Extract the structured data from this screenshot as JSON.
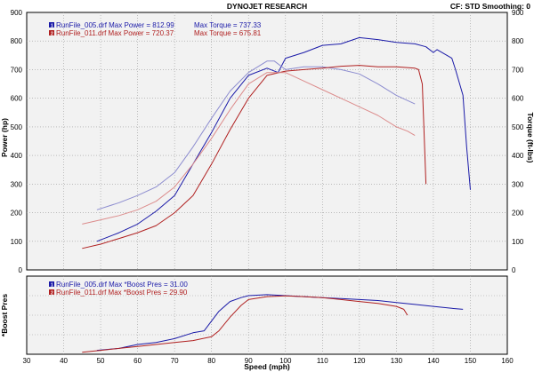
{
  "header": {
    "title": "DYNOJET RESEARCH",
    "right_info": "CF: STD   Smoothing: 0"
  },
  "colors": {
    "run1": "#1a1aa8",
    "run1_light": "#8c8ccf",
    "run2": "#b02020",
    "run2_light": "#dc8c8c",
    "plot_bg": "#f2f2f2",
    "grid": "#9a9a9a"
  },
  "chart_data": [
    {
      "type": "line",
      "panel": "power-torque",
      "ylabel": "Power (hp)",
      "y2label": "Torque (ft-lbs)",
      "xlim": [
        30,
        160
      ],
      "ylim": [
        0,
        900
      ],
      "y_ticks": [
        "0",
        "100",
        "200",
        "300",
        "400",
        "500",
        "600",
        "700",
        "800",
        "900"
      ],
      "legend": [
        {
          "marker": "1",
          "text": "RunFile_005.drf Max Power = 812.99",
          "torque_text": "Max Torque = 737.33"
        },
        {
          "marker": "2",
          "text": "RunFile_011.drf Max Power = 720.37",
          "torque_text": "Max Torque = 675.81"
        }
      ],
      "legend_position": "top-left",
      "grid": true,
      "series": [
        {
          "name": "RunFile_005.drf",
          "kind": "power",
          "color_key": "run1",
          "x": [
            49,
            55,
            60,
            65,
            70,
            75,
            80,
            85,
            90,
            95,
            98,
            100,
            105,
            110,
            115,
            120,
            125,
            130,
            135,
            138,
            140,
            141,
            145,
            146,
            148,
            149,
            150
          ],
          "y": [
            100,
            130,
            160,
            205,
            260,
            370,
            480,
            600,
            680,
            705,
            690,
            740,
            760,
            785,
            790,
            812,
            805,
            795,
            790,
            780,
            760,
            770,
            740,
            700,
            610,
            430,
            280
          ]
        },
        {
          "name": "RunFile_005.drf",
          "kind": "torque",
          "color_key": "run1_light",
          "x": [
            49,
            55,
            60,
            65,
            70,
            75,
            80,
            85,
            90,
            95,
            97,
            100,
            105,
            110,
            115,
            120,
            125,
            130,
            135
          ],
          "y": [
            210,
            235,
            260,
            290,
            340,
            430,
            530,
            625,
            690,
            730,
            730,
            700,
            710,
            710,
            700,
            685,
            650,
            610,
            580
          ]
        },
        {
          "name": "RunFile_011.drf",
          "kind": "power",
          "color_key": "run2",
          "x": [
            45,
            50,
            55,
            60,
            65,
            70,
            75,
            80,
            85,
            90,
            95,
            100,
            105,
            110,
            115,
            120,
            125,
            130,
            135,
            136,
            137,
            138
          ],
          "y": [
            75,
            90,
            110,
            130,
            155,
            200,
            260,
            370,
            490,
            600,
            680,
            695,
            700,
            705,
            712,
            715,
            710,
            710,
            705,
            700,
            650,
            300
          ]
        },
        {
          "name": "RunFile_011.drf",
          "kind": "torque",
          "color_key": "run2_light",
          "x": [
            45,
            50,
            55,
            60,
            65,
            70,
            75,
            80,
            85,
            90,
            95,
            100,
            105,
            110,
            115,
            120,
            125,
            130,
            133,
            135
          ],
          "y": [
            160,
            175,
            190,
            210,
            240,
            290,
            370,
            460,
            560,
            650,
            690,
            690,
            660,
            630,
            600,
            570,
            540,
            500,
            485,
            470
          ]
        }
      ]
    },
    {
      "type": "line",
      "panel": "boost",
      "ylabel": "*Boost Pres",
      "xlabel": "Speed (mph)",
      "xlim": [
        30,
        160
      ],
      "x_ticks": [
        "30",
        "40",
        "50",
        "60",
        "70",
        "80",
        "90",
        "100",
        "110",
        "120",
        "130",
        "140",
        "150",
        "160"
      ],
      "legend": [
        {
          "marker": "1",
          "text": "RunFile_005.drf Max *Boost Pres = 31.00"
        },
        {
          "marker": "2",
          "text": "RunFile_011.drf Max *Boost Pres = 29.90"
        }
      ],
      "legend_position": "top-left",
      "grid": true,
      "series": [
        {
          "name": "RunFile_005.drf",
          "color_key": "run1",
          "x": [
            49,
            55,
            60,
            65,
            70,
            75,
            78,
            80,
            82,
            85,
            88,
            90,
            95,
            100,
            105,
            110,
            115,
            120,
            125,
            130,
            135,
            140,
            145,
            148
          ],
          "y": [
            2,
            3,
            5,
            6,
            8,
            11,
            12,
            17,
            22,
            27,
            29,
            30,
            30.5,
            30,
            29.5,
            29,
            28.5,
            28,
            27.5,
            26.5,
            25.5,
            24.5,
            23.5,
            23
          ]
        },
        {
          "name": "RunFile_011.drf",
          "color_key": "run2",
          "x": [
            45,
            50,
            55,
            60,
            65,
            70,
            75,
            80,
            82,
            85,
            88,
            90,
            95,
            100,
            105,
            110,
            115,
            120,
            125,
            130,
            132,
            133
          ],
          "y": [
            1,
            2,
            3,
            4,
            5,
            6,
            7,
            9,
            12,
            19,
            25,
            28,
            29.5,
            29.9,
            29.5,
            29,
            28,
            27,
            26,
            24.5,
            23,
            20
          ]
        }
      ],
      "ylim": [
        0,
        40
      ]
    }
  ]
}
